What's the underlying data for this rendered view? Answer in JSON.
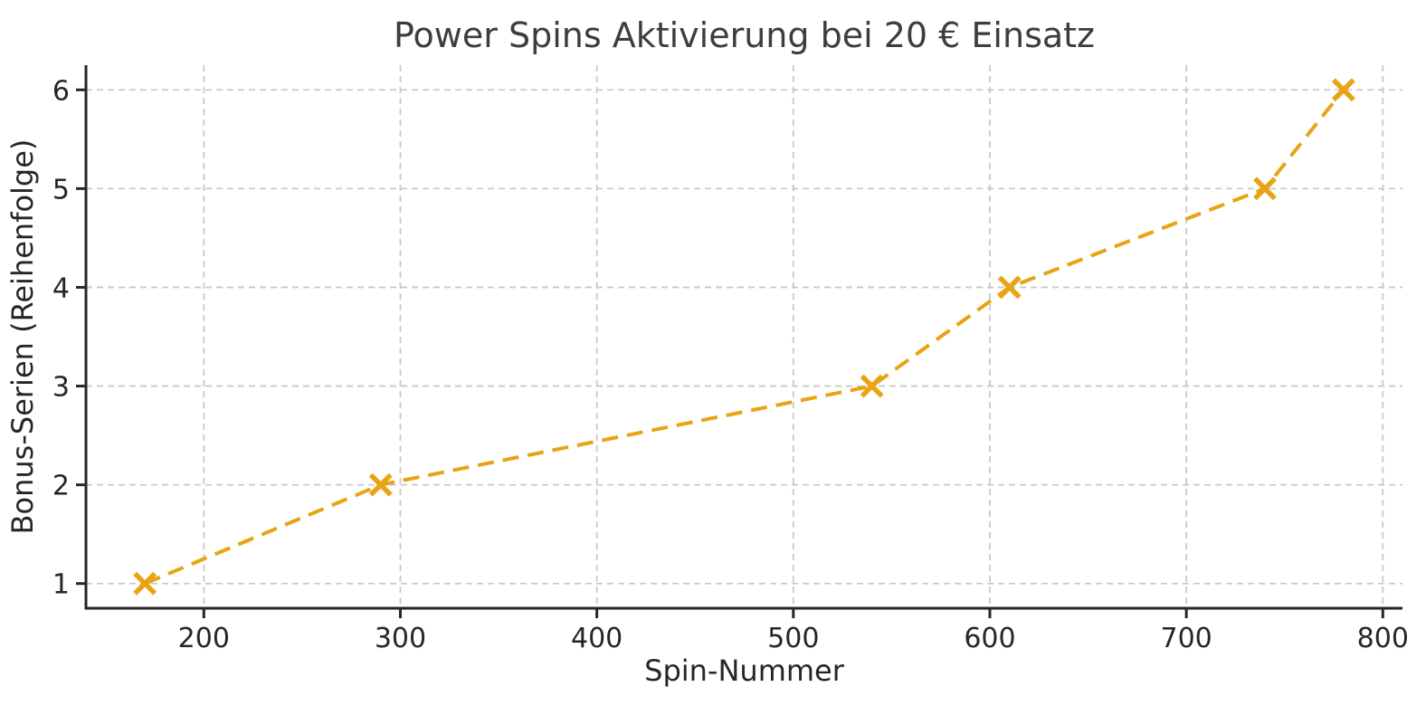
{
  "chart_data": {
    "type": "line",
    "title": "Power Spins Aktivierung bei 20 € Einsatz",
    "xlabel": "Spin-Nummer",
    "ylabel": "Bonus-Serien (Reihenfolge)",
    "x": [
      170,
      290,
      540,
      610,
      740,
      780
    ],
    "y": [
      1,
      2,
      3,
      4,
      5,
      6
    ],
    "xticks": [
      200,
      300,
      400,
      500,
      600,
      700,
      800
    ],
    "yticks": [
      1,
      2,
      3,
      4,
      5,
      6
    ],
    "xlim": [
      140,
      810
    ],
    "ylim": [
      0.75,
      6.25
    ],
    "grid": true,
    "legend": "none",
    "line_style": "dashed",
    "marker": "x",
    "colors": {
      "series": "#e8a413",
      "grid": "#c9c9c9",
      "axis": "#262626",
      "title": "#3d3d3d",
      "background": "#ffffff"
    }
  }
}
